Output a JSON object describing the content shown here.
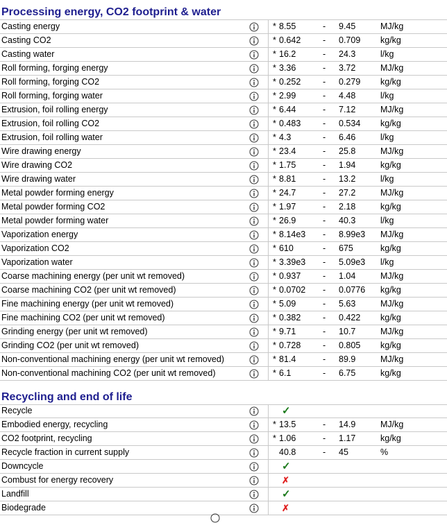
{
  "processing": {
    "title": "Processing energy, CO2 footprint & water",
    "rows": [
      {
        "label": "Casting energy",
        "star": "*",
        "low": "8.55",
        "dash": "-",
        "high": "9.45",
        "unit": "MJ/kg"
      },
      {
        "label": "Casting CO2",
        "star": "*",
        "low": "0.642",
        "dash": "-",
        "high": "0.709",
        "unit": "kg/kg"
      },
      {
        "label": "Casting water",
        "star": "*",
        "low": "16.2",
        "dash": "-",
        "high": "24.3",
        "unit": "l/kg"
      },
      {
        "label": "Roll forming, forging energy",
        "star": "*",
        "low": "3.36",
        "dash": "-",
        "high": "3.72",
        "unit": "MJ/kg"
      },
      {
        "label": "Roll forming, forging CO2",
        "star": "*",
        "low": "0.252",
        "dash": "-",
        "high": "0.279",
        "unit": "kg/kg"
      },
      {
        "label": "Roll forming, forging water",
        "star": "*",
        "low": "2.99",
        "dash": "-",
        "high": "4.48",
        "unit": "l/kg"
      },
      {
        "label": "Extrusion, foil rolling energy",
        "star": "*",
        "low": "6.44",
        "dash": "-",
        "high": "7.12",
        "unit": "MJ/kg"
      },
      {
        "label": "Extrusion, foil rolling CO2",
        "star": "*",
        "low": "0.483",
        "dash": "-",
        "high": "0.534",
        "unit": "kg/kg"
      },
      {
        "label": "Extrusion, foil rolling water",
        "star": "*",
        "low": "4.3",
        "dash": "-",
        "high": "6.46",
        "unit": "l/kg"
      },
      {
        "label": "Wire drawing energy",
        "star": "*",
        "low": "23.4",
        "dash": "-",
        "high": "25.8",
        "unit": "MJ/kg"
      },
      {
        "label": "Wire drawing CO2",
        "star": "*",
        "low": "1.75",
        "dash": "-",
        "high": "1.94",
        "unit": "kg/kg"
      },
      {
        "label": "Wire drawing water",
        "star": "*",
        "low": "8.81",
        "dash": "-",
        "high": "13.2",
        "unit": "l/kg"
      },
      {
        "label": "Metal powder forming energy",
        "star": "*",
        "low": "24.7",
        "dash": "-",
        "high": "27.2",
        "unit": "MJ/kg"
      },
      {
        "label": "Metal powder forming CO2",
        "star": "*",
        "low": "1.97",
        "dash": "-",
        "high": "2.18",
        "unit": "kg/kg"
      },
      {
        "label": "Metal powder forming water",
        "star": "*",
        "low": "26.9",
        "dash": "-",
        "high": "40.3",
        "unit": "l/kg"
      },
      {
        "label": "Vaporization energy",
        "star": "*",
        "low": "8.14e3",
        "dash": "-",
        "high": "8.99e3",
        "unit": "MJ/kg"
      },
      {
        "label": "Vaporization CO2",
        "star": "*",
        "low": "610",
        "dash": "-",
        "high": "675",
        "unit": "kg/kg"
      },
      {
        "label": "Vaporization water",
        "star": "*",
        "low": "3.39e3",
        "dash": "-",
        "high": "5.09e3",
        "unit": "l/kg"
      },
      {
        "label": "Coarse machining energy (per unit wt removed)",
        "star": "*",
        "low": "0.937",
        "dash": "-",
        "high": "1.04",
        "unit": "MJ/kg"
      },
      {
        "label": "Coarse machining CO2 (per unit wt removed)",
        "star": "*",
        "low": "0.0702",
        "dash": "-",
        "high": "0.0776",
        "unit": "kg/kg"
      },
      {
        "label": "Fine machining energy (per unit wt removed)",
        "star": "*",
        "low": "5.09",
        "dash": "-",
        "high": "5.63",
        "unit": "MJ/kg"
      },
      {
        "label": "Fine machining CO2 (per unit wt removed)",
        "star": "*",
        "low": "0.382",
        "dash": "-",
        "high": "0.422",
        "unit": "kg/kg"
      },
      {
        "label": "Grinding energy (per unit wt removed)",
        "star": "*",
        "low": "9.71",
        "dash": "-",
        "high": "10.7",
        "unit": "MJ/kg"
      },
      {
        "label": "Grinding CO2 (per unit wt removed)",
        "star": "*",
        "low": "0.728",
        "dash": "-",
        "high": "0.805",
        "unit": "kg/kg"
      },
      {
        "label": "Non-conventional machining energy (per unit wt removed)",
        "star": "*",
        "low": "81.4",
        "dash": "-",
        "high": "89.9",
        "unit": "MJ/kg"
      },
      {
        "label": "Non-conventional machining CO2 (per unit wt removed)",
        "star": "*",
        "low": "6.1",
        "dash": "-",
        "high": "6.75",
        "unit": "kg/kg"
      }
    ]
  },
  "recycling": {
    "title": "Recycling and end of life",
    "rows": [
      {
        "label": "Recycle",
        "mark": "✓",
        "mark_type": "yes"
      },
      {
        "label": "Embodied energy, recycling",
        "star": "*",
        "low": "13.5",
        "dash": "-",
        "high": "14.9",
        "unit": "MJ/kg"
      },
      {
        "label": "CO2 footprint, recycling",
        "star": "*",
        "low": "1.06",
        "dash": "-",
        "high": "1.17",
        "unit": "kg/kg"
      },
      {
        "label": "Recycle fraction in current supply",
        "low": "40.8",
        "dash": "-",
        "high": "45",
        "unit": "%"
      },
      {
        "label": "Downcycle",
        "mark": "✓",
        "mark_type": "yes"
      },
      {
        "label": "Combust for energy recovery",
        "mark": "✗",
        "mark_type": "no"
      },
      {
        "label": "Landfill",
        "mark": "✓",
        "mark_type": "yes"
      },
      {
        "label": "Biodegrade",
        "mark": "✗",
        "mark_type": "no"
      }
    ]
  },
  "icons": {
    "info": "info-circle-icon"
  },
  "colors": {
    "title": "#1f1f8f",
    "check": "#1b7a1b",
    "cross": "#e02020",
    "rule": "#c9c9c9"
  }
}
